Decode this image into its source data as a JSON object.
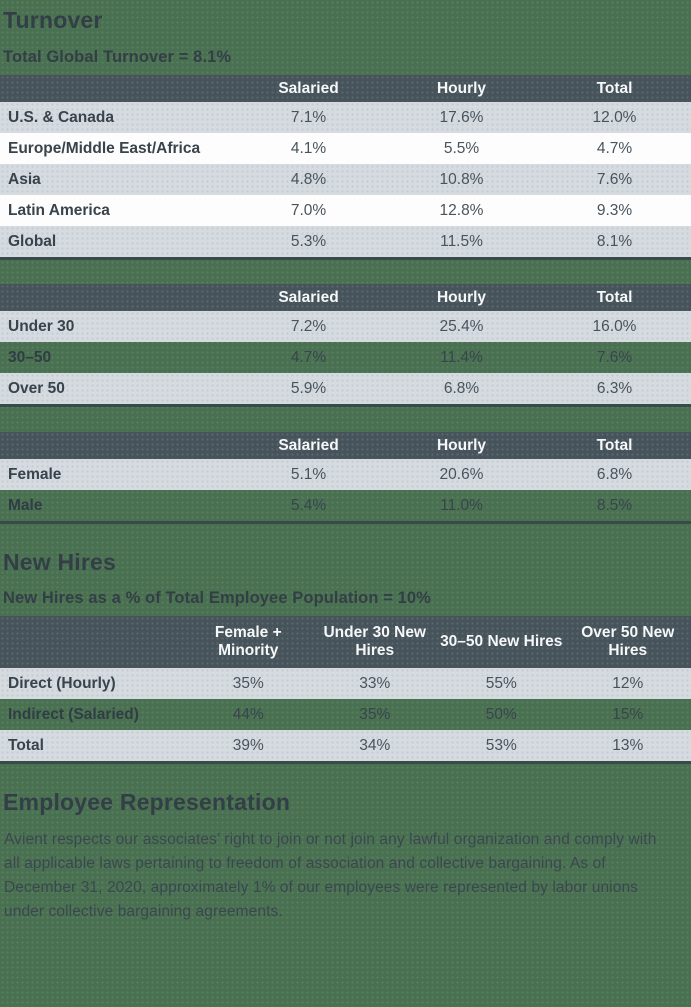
{
  "colors": {
    "page_background": "#497051",
    "table_header_background": "#46535b",
    "row_gray": "#d6dbe0",
    "row_white": "#fdfdfd",
    "heading_text": "#333e46",
    "header_text": "#f5f7f8",
    "value_text": "#49535b",
    "table_bottom_border": "#3a4a4b"
  },
  "turnover": {
    "heading": "Turnover",
    "subheading": "Total Global Turnover = 8.1%",
    "region_table": {
      "columns": [
        "Salaried",
        "Hourly",
        "Total"
      ],
      "rows": [
        {
          "label": "U.S. & Canada",
          "values": [
            "7.1%",
            "17.6%",
            "12.0%"
          ]
        },
        {
          "label": "Europe/Middle East/Africa",
          "values": [
            "4.1%",
            "5.5%",
            "4.7%"
          ]
        },
        {
          "label": "Asia",
          "values": [
            "4.8%",
            "10.8%",
            "7.6%"
          ]
        },
        {
          "label": "Latin America",
          "values": [
            "7.0%",
            "12.8%",
            "9.3%"
          ]
        },
        {
          "label": "Global",
          "values": [
            "5.3%",
            "11.5%",
            "8.1%"
          ]
        }
      ]
    },
    "age_table": {
      "columns": [
        "Salaried",
        "Hourly",
        "Total"
      ],
      "rows": [
        {
          "label": "Under 30",
          "values": [
            "7.2%",
            "25.4%",
            "16.0%"
          ]
        },
        {
          "label": "30–50",
          "values": [
            "4.7%",
            "11.4%",
            "7.6%"
          ]
        },
        {
          "label": "Over 50",
          "values": [
            "5.9%",
            "6.8%",
            "6.3%"
          ]
        }
      ]
    },
    "gender_table": {
      "columns": [
        "Salaried",
        "Hourly",
        "Total"
      ],
      "rows": [
        {
          "label": "Female",
          "values": [
            "5.1%",
            "20.6%",
            "6.8%"
          ]
        },
        {
          "label": "Male",
          "values": [
            "5.4%",
            "11.0%",
            "8.5%"
          ]
        }
      ]
    }
  },
  "new_hires": {
    "heading": "New Hires",
    "subheading": "New Hires as a % of Total Employee Population = 10%",
    "table": {
      "columns": [
        "Female + Minority",
        "Under 30 New Hires",
        "30–50 New Hires",
        "Over 50 New Hires"
      ],
      "rows": [
        {
          "label": "Direct (Hourly)",
          "values": [
            "35%",
            "33%",
            "55%",
            "12%"
          ]
        },
        {
          "label": "Indirect (Salaried)",
          "values": [
            "44%",
            "35%",
            "50%",
            "15%"
          ]
        },
        {
          "label": "Total",
          "values": [
            "39%",
            "34%",
            "53%",
            "13%"
          ]
        }
      ]
    }
  },
  "employee_representation": {
    "heading": "Employee Representation",
    "body": "Avient respects our associates’ right to join or not join any lawful organization and comply with all applicable laws pertaining to freedom of association and collective bargaining. As of December 31, 2020, approximately 1% of our employees were represented by labor unions under collective bargaining agreements."
  }
}
